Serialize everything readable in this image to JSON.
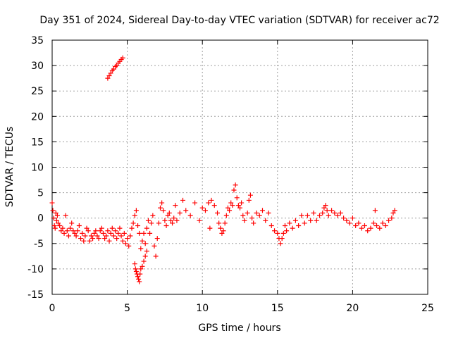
{
  "chart_data": {
    "type": "scatter",
    "title": "Day 351 of 2024, Sidereal Day-to-day VTEC variation (SDTVAR) for receiver ac72",
    "xlabel": "GPS time / hours",
    "ylabel": "SDTVAR / TECUs",
    "xlim": [
      0,
      25
    ],
    "ylim": [
      -15,
      35
    ],
    "xticks": [
      "0",
      "5",
      "10",
      "15",
      "20",
      "25"
    ],
    "yticks": [
      "-15",
      "-10",
      "-5",
      "0",
      "5",
      "10",
      "15",
      "20",
      "25",
      "30",
      "35"
    ],
    "grid": true,
    "marker": "+",
    "colors": {
      "series": "#ff0000",
      "grid": "#a0a0a0",
      "axis": "#000000"
    },
    "series": [
      {
        "name": "SDTVAR",
        "points": [
          [
            0.0,
            3.0
          ],
          [
            0.05,
            1.5
          ],
          [
            0.1,
            0.0
          ],
          [
            0.15,
            -1.5
          ],
          [
            0.2,
            -2.0
          ],
          [
            0.25,
            1.0
          ],
          [
            0.3,
            -0.5
          ],
          [
            0.35,
            0.5
          ],
          [
            0.4,
            -1.0
          ],
          [
            0.5,
            -1.5
          ],
          [
            0.6,
            -2.5
          ],
          [
            0.7,
            -2.0
          ],
          [
            0.8,
            -3.0
          ],
          [
            0.9,
            0.5
          ],
          [
            1.0,
            -2.5
          ],
          [
            1.1,
            -3.5
          ],
          [
            1.2,
            -2.0
          ],
          [
            1.3,
            -1.0
          ],
          [
            1.4,
            -2.5
          ],
          [
            1.5,
            -3.0
          ],
          [
            1.6,
            -3.5
          ],
          [
            1.7,
            -2.5
          ],
          [
            1.8,
            -1.5
          ],
          [
            1.9,
            -4.0
          ],
          [
            2.0,
            -3.0
          ],
          [
            2.1,
            -4.5
          ],
          [
            2.2,
            -3.5
          ],
          [
            2.3,
            -2.0
          ],
          [
            2.4,
            -2.5
          ],
          [
            2.5,
            -4.5
          ],
          [
            2.6,
            -3.5
          ],
          [
            2.7,
            -4.0
          ],
          [
            2.8,
            -3.0
          ],
          [
            2.9,
            -2.5
          ],
          [
            3.0,
            -3.5
          ],
          [
            3.1,
            -4.0
          ],
          [
            3.2,
            -2.5
          ],
          [
            3.3,
            -2.0
          ],
          [
            3.4,
            -3.0
          ],
          [
            3.5,
            -4.0
          ],
          [
            3.6,
            -3.5
          ],
          [
            3.7,
            -2.5
          ],
          [
            3.8,
            -4.5
          ],
          [
            3.9,
            -3.0
          ],
          [
            4.0,
            -2.0
          ],
          [
            4.1,
            -3.5
          ],
          [
            4.2,
            -2.5
          ],
          [
            4.3,
            -4.0
          ],
          [
            4.4,
            -3.0
          ],
          [
            4.5,
            -2.0
          ],
          [
            4.6,
            -3.5
          ],
          [
            4.7,
            -4.5
          ],
          [
            4.8,
            -3.0
          ],
          [
            4.9,
            -5.0
          ],
          [
            5.0,
            -4.0
          ],
          [
            5.1,
            -5.5
          ],
          [
            5.2,
            -3.5
          ],
          [
            5.3,
            -2.0
          ],
          [
            5.4,
            -1.0
          ],
          [
            5.5,
            0.5
          ],
          [
            5.6,
            1.5
          ],
          [
            5.7,
            -1.5
          ],
          [
            5.8,
            -3.0
          ],
          [
            5.9,
            -6.0
          ],
          [
            6.0,
            -4.5
          ],
          [
            6.1,
            -3.0
          ],
          [
            6.2,
            -5.0
          ],
          [
            6.3,
            -2.0
          ],
          [
            6.4,
            -0.5
          ],
          [
            6.5,
            -3.0
          ],
          [
            6.6,
            -1.0
          ],
          [
            6.7,
            0.5
          ],
          [
            6.8,
            -5.5
          ],
          [
            6.9,
            -7.5
          ],
          [
            7.0,
            -4.0
          ],
          [
            7.1,
            -1.0
          ],
          [
            7.2,
            2.0
          ],
          [
            7.3,
            3.0
          ],
          [
            7.4,
            1.5
          ],
          [
            7.5,
            -0.5
          ],
          [
            7.6,
            -1.5
          ],
          [
            7.7,
            0.5
          ],
          [
            7.8,
            1.0
          ],
          [
            7.9,
            -0.5
          ],
          [
            8.0,
            -1.0
          ],
          [
            8.1,
            0.0
          ],
          [
            8.2,
            2.5
          ],
          [
            8.3,
            -0.5
          ],
          [
            8.5,
            1.0
          ],
          [
            8.7,
            3.5
          ],
          [
            8.9,
            1.5
          ],
          [
            9.2,
            0.5
          ],
          [
            9.5,
            3.0
          ],
          [
            9.8,
            -0.5
          ],
          [
            10.0,
            2.0
          ],
          [
            10.2,
            1.5
          ],
          [
            10.4,
            3.0
          ],
          [
            10.5,
            -2.0
          ],
          [
            10.6,
            3.5
          ],
          [
            10.8,
            2.5
          ],
          [
            11.0,
            1.0
          ],
          [
            11.1,
            -1.0
          ],
          [
            11.2,
            -2.0
          ],
          [
            11.3,
            -3.0
          ],
          [
            11.4,
            -2.5
          ],
          [
            11.5,
            -1.0
          ],
          [
            11.6,
            0.5
          ],
          [
            11.7,
            2.0
          ],
          [
            11.8,
            1.5
          ],
          [
            11.9,
            3.0
          ],
          [
            12.0,
            2.5
          ],
          [
            12.1,
            5.5
          ],
          [
            12.2,
            6.5
          ],
          [
            12.3,
            4.0
          ],
          [
            12.4,
            2.5
          ],
          [
            12.5,
            2.0
          ],
          [
            12.6,
            3.0
          ],
          [
            12.7,
            0.5
          ],
          [
            12.8,
            -0.5
          ],
          [
            13.0,
            1.0
          ],
          [
            13.1,
            3.5
          ],
          [
            13.2,
            4.5
          ],
          [
            13.3,
            0.0
          ],
          [
            13.4,
            -1.0
          ],
          [
            13.6,
            1.0
          ],
          [
            13.8,
            0.5
          ],
          [
            14.0,
            1.5
          ],
          [
            14.2,
            -0.5
          ],
          [
            14.4,
            1.0
          ],
          [
            14.6,
            -1.5
          ],
          [
            14.8,
            -2.5
          ],
          [
            15.0,
            -3.0
          ],
          [
            15.1,
            -4.0
          ],
          [
            15.2,
            -5.0
          ],
          [
            15.3,
            -4.0
          ],
          [
            15.4,
            -3.0
          ],
          [
            15.5,
            -1.5
          ],
          [
            15.6,
            -2.5
          ],
          [
            15.8,
            -1.0
          ],
          [
            16.0,
            -2.0
          ],
          [
            16.2,
            -0.5
          ],
          [
            16.4,
            -1.5
          ],
          [
            16.6,
            0.5
          ],
          [
            16.8,
            -1.0
          ],
          [
            17.0,
            0.5
          ],
          [
            17.2,
            -0.5
          ],
          [
            17.4,
            1.0
          ],
          [
            17.6,
            -0.5
          ],
          [
            17.8,
            0.5
          ],
          [
            18.0,
            1.0
          ],
          [
            18.1,
            2.0
          ],
          [
            18.2,
            2.5
          ],
          [
            18.3,
            1.5
          ],
          [
            18.4,
            0.5
          ],
          [
            18.6,
            1.5
          ],
          [
            18.8,
            1.0
          ],
          [
            19.0,
            0.5
          ],
          [
            19.2,
            1.0
          ],
          [
            19.4,
            0.0
          ],
          [
            19.6,
            -0.5
          ],
          [
            19.8,
            -1.0
          ],
          [
            20.0,
            0.0
          ],
          [
            20.2,
            -1.5
          ],
          [
            20.4,
            -1.0
          ],
          [
            20.6,
            -2.0
          ],
          [
            20.8,
            -1.5
          ],
          [
            21.0,
            -2.5
          ],
          [
            21.2,
            -2.0
          ],
          [
            21.4,
            -1.0
          ],
          [
            21.5,
            1.5
          ],
          [
            21.6,
            -1.5
          ],
          [
            21.8,
            -2.0
          ],
          [
            22.0,
            -1.0
          ],
          [
            22.2,
            -1.5
          ],
          [
            22.4,
            -0.5
          ],
          [
            22.6,
            0.0
          ],
          [
            22.7,
            1.0
          ],
          [
            22.8,
            1.5
          ],
          [
            3.7,
            27.5
          ],
          [
            3.8,
            28.0
          ],
          [
            3.9,
            28.5
          ],
          [
            4.0,
            29.0
          ],
          [
            4.1,
            29.3
          ],
          [
            4.2,
            29.8
          ],
          [
            4.3,
            30.0
          ],
          [
            4.4,
            30.5
          ],
          [
            4.5,
            30.8
          ],
          [
            4.6,
            31.2
          ],
          [
            4.7,
            31.5
          ],
          [
            5.5,
            -9.0
          ],
          [
            5.55,
            -10.0
          ],
          [
            5.6,
            -10.5
          ],
          [
            5.65,
            -11.0
          ],
          [
            5.7,
            -11.5
          ],
          [
            5.75,
            -12.0
          ],
          [
            5.8,
            -12.5
          ],
          [
            5.85,
            -11.0
          ],
          [
            5.9,
            -10.0
          ],
          [
            6.0,
            -9.5
          ],
          [
            6.1,
            -8.5
          ],
          [
            6.2,
            -7.5
          ],
          [
            6.3,
            -6.5
          ]
        ]
      }
    ]
  }
}
